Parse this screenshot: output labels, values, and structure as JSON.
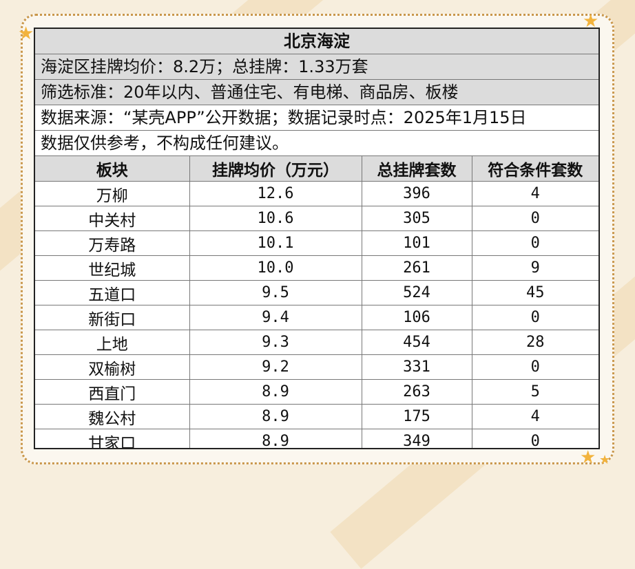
{
  "title": "北京海淀",
  "summary": "海淀区挂牌均价：8.2万；总挂牌：1.33万套",
  "criteria": "筛选标准：20年以内、普通住宅、有电梯、商品房、板楼",
  "source": "数据来源：“某壳APP”公开数据；数据记录时点：2025年1月15日",
  "disclaimer": "数据仅供参考，不构成任何建议。",
  "columns": [
    "板块",
    "挂牌均价（万元）",
    "总挂牌套数",
    "符合条件套数"
  ],
  "rows": [
    [
      "万柳",
      "12.6",
      "396",
      "4"
    ],
    [
      "中关村",
      "10.6",
      "305",
      "0"
    ],
    [
      "万寿路",
      "10.1",
      "101",
      "0"
    ],
    [
      "世纪城",
      "10.0",
      "261",
      "9"
    ],
    [
      "五道口",
      "9.5",
      "524",
      "45"
    ],
    [
      "新街口",
      "9.4",
      "106",
      "0"
    ],
    [
      "上地",
      "9.3",
      "454",
      "28"
    ],
    [
      "双榆树",
      "9.2",
      "331",
      "0"
    ],
    [
      "西直门",
      "8.9",
      "263",
      "5"
    ],
    [
      "魏公村",
      "8.9",
      "175",
      "4"
    ],
    [
      "甘家口",
      "8.9",
      "349",
      "0"
    ]
  ],
  "colors": {
    "background": "#f7eedd",
    "frame_border": "#c9974b",
    "header_fill": "#dcdcdc",
    "star": "#f2b33d"
  },
  "icons": {
    "decoration": "star-icon"
  }
}
